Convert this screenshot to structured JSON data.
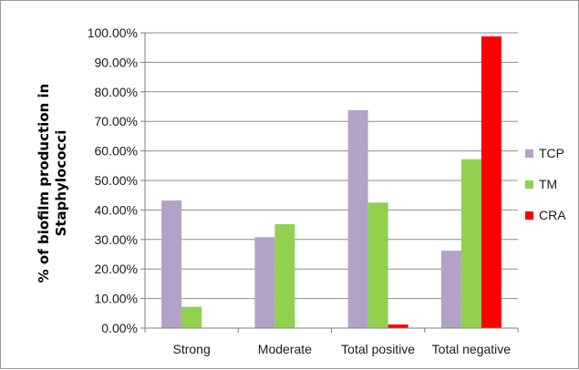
{
  "chart_data": {
    "type": "bar",
    "title": "",
    "xlabel": "",
    "ylabel_lines": [
      "% of biofilm production in",
      "Staphylococci"
    ],
    "categories": [
      "Strong",
      "Moderate",
      "Total positive",
      "Total negative"
    ],
    "series": [
      {
        "name": "TCP",
        "color": "#b3a2c7",
        "values": [
          0.432,
          0.308,
          0.738,
          0.262
        ]
      },
      {
        "name": "TM",
        "color": "#92d050",
        "values": [
          0.072,
          0.352,
          0.425,
          0.572
        ]
      },
      {
        "name": "CRA",
        "color": "#ff0000",
        "values": [
          0.0,
          0.0,
          0.012,
          0.988
        ]
      }
    ],
    "ylim": [
      0,
      1
    ],
    "y_ticks": [
      "0.00%",
      "10.00%",
      "20.00%",
      "30.00%",
      "40.00%",
      "50.00%",
      "60.00%",
      "70.00%",
      "80.00%",
      "90.00%",
      "100.00%"
    ],
    "grid": true,
    "legend_position": "right"
  }
}
